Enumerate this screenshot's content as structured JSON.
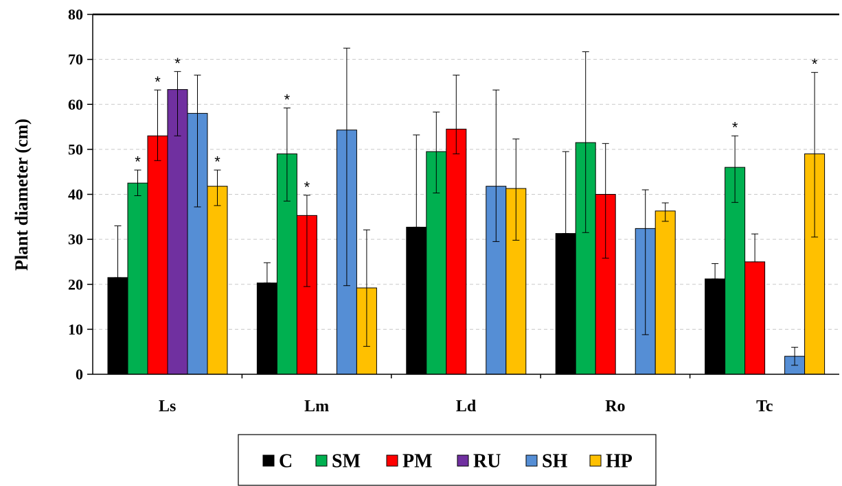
{
  "chart_data": {
    "type": "bar",
    "ylabel": "Plant diameter (cm)",
    "xlabel": "",
    "ylim": [
      0,
      80
    ],
    "yticks": [
      "0",
      "10",
      "20",
      "30",
      "40",
      "50",
      "60",
      "70",
      "80"
    ],
    "grid": "horizontal dashed",
    "legend_position": "bottom",
    "categories": [
      "Ls",
      "Lm",
      "Ld",
      "Ro",
      "Tc"
    ],
    "series": [
      {
        "name": "C",
        "color": "#000000",
        "values": [
          21.5,
          20.3,
          32.7,
          31.3,
          21.2
        ],
        "err_lower": [
          21.5,
          20.3,
          32.7,
          31.3,
          21.2
        ],
        "err_upper": [
          33,
          24.8,
          53.2,
          49.5,
          24.6
        ],
        "sig": [
          "",
          "",
          "",
          "",
          ""
        ]
      },
      {
        "name": "SM",
        "color": "#00b050",
        "values": [
          42.5,
          49,
          49.5,
          51.5,
          46
        ],
        "err_lower": [
          39.7,
          38.5,
          40.3,
          31.5,
          38.2
        ],
        "err_upper": [
          45.4,
          59.2,
          58.3,
          71.7,
          53
        ],
        "sig": [
          "*",
          "*",
          "",
          "",
          "*"
        ]
      },
      {
        "name": "PM",
        "color": "#ff0000",
        "values": [
          53,
          35.3,
          54.5,
          40,
          25
        ],
        "err_lower": [
          47.5,
          19.5,
          49,
          25.8,
          25
        ],
        "err_upper": [
          63.2,
          39.8,
          66.5,
          51.3,
          31.2
        ],
        "sig": [
          "*",
          "*",
          "",
          "",
          ""
        ]
      },
      {
        "name": "RU",
        "color": "#7030a0",
        "values": [
          63.3,
          null,
          null,
          null,
          null
        ],
        "err_lower": [
          53,
          null,
          null,
          null,
          null
        ],
        "err_upper": [
          67.3,
          null,
          null,
          null,
          null
        ],
        "sig": [
          "*",
          "",
          "",
          "",
          ""
        ]
      },
      {
        "name": "SH",
        "color": "#558ed5",
        "values": [
          58,
          54.3,
          41.8,
          32.4,
          4
        ],
        "err_lower": [
          37.2,
          19.7,
          29.5,
          8.8,
          2
        ],
        "err_upper": [
          66.5,
          72.5,
          63.2,
          41,
          6
        ],
        "sig": [
          "",
          "",
          "",
          "",
          ""
        ]
      },
      {
        "name": "HP",
        "color": "#ffc000",
        "values": [
          41.8,
          19.2,
          41.3,
          36.3,
          49
        ],
        "err_lower": [
          37.5,
          6.2,
          29.8,
          34,
          30.5
        ],
        "err_upper": [
          45.4,
          32.1,
          52.3,
          38.1,
          67.1
        ],
        "sig": [
          "*",
          "",
          "",
          "",
          "*"
        ]
      }
    ]
  }
}
